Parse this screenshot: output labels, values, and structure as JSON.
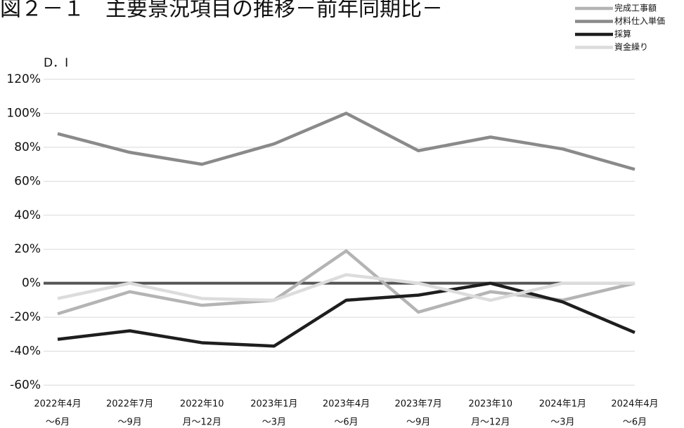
{
  "chart_data": {
    "type": "line",
    "title": "図２－１　主要景況項目の推移－前年同期比－",
    "y_label": "D．I",
    "categories": [
      [
        "2022年4月",
        "～6月"
      ],
      [
        "2022年7月",
        "～9月"
      ],
      [
        "2022年10",
        "月～12月"
      ],
      [
        "2023年1月",
        "～3月"
      ],
      [
        "2023年4月",
        "～6月"
      ],
      [
        "2023年7月",
        "～9月"
      ],
      [
        "2023年10",
        "月～12月"
      ],
      [
        "2024年1月",
        "～3月"
      ],
      [
        "2024年4月",
        "～6月"
      ]
    ],
    "series": [
      {
        "name": "完成工事額",
        "color": "#b4b4b4",
        "values": [
          -18,
          -5,
          -13,
          -10,
          19,
          -17,
          -5,
          -10,
          0
        ]
      },
      {
        "name": "材料仕入単価",
        "color": "#8a8a8a",
        "values": [
          88,
          77,
          70,
          82,
          100,
          78,
          86,
          79,
          67
        ]
      },
      {
        "name": "採算",
        "color": "#1e1e1e",
        "values": [
          -33,
          -28,
          -35,
          -37,
          -10,
          -7,
          0,
          -11,
          -29
        ]
      },
      {
        "name": "資金繰り",
        "color": "#dcdcdc",
        "values": [
          -9,
          0,
          -9,
          -10,
          5,
          0,
          -10,
          0,
          0
        ]
      }
    ],
    "ylim": [
      -60,
      120
    ],
    "yticks": [
      {
        "value": -60,
        "label": "-60%"
      },
      {
        "value": -40,
        "label": "-40%"
      },
      {
        "value": -20,
        "label": "-20%"
      },
      {
        "value": 0,
        "label": "0%"
      },
      {
        "value": 20,
        "label": "20%"
      },
      {
        "value": 40,
        "label": "40%"
      },
      {
        "value": 60,
        "label": "60%"
      },
      {
        "value": 80,
        "label": "80%"
      },
      {
        "value": 100,
        "label": "100%"
      },
      {
        "value": 120,
        "label": "120%"
      }
    ],
    "grid": true,
    "legend": "top-right"
  }
}
